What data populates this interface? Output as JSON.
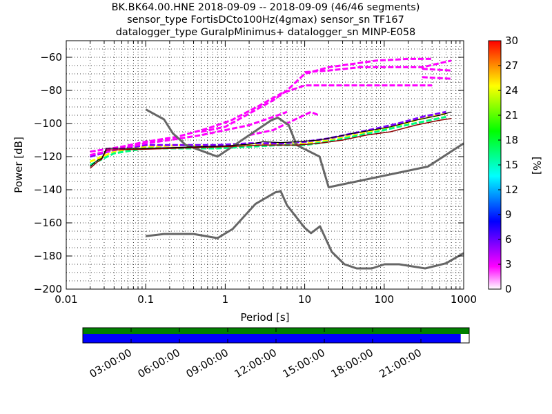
{
  "chart_data": {
    "type": "heatmap",
    "title_lines": [
      "BK.BK64.00.HNE   2018-09-09 -- 2018-09-09  (46/46 segments)",
      "sensor_type FortisDCto100Hz(4gmax) sensor_sn TF167",
      "datalogger_type GuralpMinimus+ datalogger_sn MINP-E058"
    ],
    "xlabel": "Period [s]",
    "ylabel": "Power [dB]",
    "xscale": "log",
    "xlim": [
      0.01,
      1000
    ],
    "ylim": [
      -200,
      -50
    ],
    "xticks": [
      {
        "value": 0.01,
        "label": "0.01"
      },
      {
        "value": 0.1,
        "label": "0.1"
      },
      {
        "value": 1,
        "label": "1"
      },
      {
        "value": 10,
        "label": "10"
      },
      {
        "value": 100,
        "label": "100"
      },
      {
        "value": 1000,
        "label": "1000"
      }
    ],
    "yticks": [
      {
        "value": -200,
        "label": "−200"
      },
      {
        "value": -180,
        "label": "−180"
      },
      {
        "value": -160,
        "label": "−160"
      },
      {
        "value": -140,
        "label": "−140"
      },
      {
        "value": -120,
        "label": "−120"
      },
      {
        "value": -100,
        "label": "−100"
      },
      {
        "value": -80,
        "label": "−80"
      },
      {
        "value": -60,
        "label": "−60"
      }
    ],
    "grid": true,
    "colorbar": {
      "label": "[%]",
      "min": 0,
      "max": 30,
      "ticks": [
        {
          "value": 0,
          "label": "0"
        },
        {
          "value": 3,
          "label": "3"
        },
        {
          "value": 6,
          "label": "6"
        },
        {
          "value": 9,
          "label": "9"
        },
        {
          "value": 12,
          "label": "12"
        },
        {
          "value": 15,
          "label": "15"
        },
        {
          "value": 18,
          "label": "18"
        },
        {
          "value": 21,
          "label": "21"
        },
        {
          "value": 24,
          "label": "24"
        },
        {
          "value": 27,
          "label": "27"
        },
        {
          "value": 30,
          "label": "30"
        }
      ],
      "colors": [
        "#ffffff",
        "#ff00ff",
        "#8000ff",
        "#0000ff",
        "#0080ff",
        "#00ffff",
        "#00ff80",
        "#00ff00",
        "#80ff00",
        "#ffff00",
        "#ff8000",
        "#ff0000"
      ]
    },
    "noise_models": [
      {
        "points": [
          [
            0.1,
            -91.5
          ],
          [
            0.17,
            -97.5
          ],
          [
            0.22,
            -106
          ],
          [
            0.32,
            -113
          ],
          [
            0.8,
            -120
          ],
          [
            3.8,
            -98
          ],
          [
            4.6,
            -96.5
          ],
          [
            6.3,
            -101
          ],
          [
            7.9,
            -113
          ],
          [
            15.4,
            -120
          ],
          [
            20,
            -138.5
          ],
          [
            354.8,
            -126
          ],
          [
            1000,
            -112
          ]
        ]
      },
      {
        "points": [
          [
            0.1,
            -168
          ],
          [
            0.17,
            -166.7
          ],
          [
            0.4,
            -166.7
          ],
          [
            0.8,
            -169.2
          ],
          [
            1.24,
            -163.7
          ],
          [
            2.4,
            -148.6
          ],
          [
            4.3,
            -141.5
          ],
          [
            5.0,
            -141
          ],
          [
            6.0,
            -149.4
          ],
          [
            10.0,
            -163
          ],
          [
            12.0,
            -166.2
          ],
          [
            15.6,
            -162.1
          ],
          [
            21.9,
            -177.5
          ],
          [
            31.6,
            -185
          ],
          [
            45.0,
            -187.5
          ],
          [
            70.0,
            -187.5
          ],
          [
            101.0,
            -185
          ],
          [
            154.0,
            -185
          ],
          [
            328.0,
            -187.5
          ],
          [
            600.0,
            -184.4
          ],
          [
            1000.0,
            -178.3
          ]
        ]
      }
    ],
    "mean_curve": {
      "points": [
        [
          0.02,
          -126
        ],
        [
          0.025,
          -122
        ],
        [
          0.028,
          -121
        ],
        [
          0.032,
          -115
        ],
        [
          0.05,
          -115
        ],
        [
          0.1,
          -115
        ],
        [
          0.2,
          -114.5
        ],
        [
          0.5,
          -114
        ],
        [
          1,
          -113.5
        ],
        [
          2,
          -112.5
        ],
        [
          3,
          -111
        ],
        [
          5,
          -111.5
        ],
        [
          8,
          -111
        ],
        [
          15,
          -110
        ],
        [
          25,
          -108
        ],
        [
          40,
          -106
        ],
        [
          70,
          -104
        ],
        [
          120,
          -102
        ],
        [
          250,
          -98
        ],
        [
          500,
          -95
        ],
        [
          700,
          -93
        ]
      ]
    },
    "mode_curve": {
      "points": [
        [
          0.02,
          -127
        ],
        [
          0.025,
          -123
        ],
        [
          0.028,
          -121.5
        ],
        [
          0.032,
          -116
        ],
        [
          0.1,
          -115.5
        ],
        [
          0.5,
          -114.5
        ],
        [
          1,
          -114
        ],
        [
          3,
          -113
        ],
        [
          8,
          -113
        ],
        [
          15,
          -112
        ],
        [
          30,
          -110
        ],
        [
          60,
          -107
        ],
        [
          120,
          -105
        ],
        [
          250,
          -101
        ],
        [
          500,
          -98
        ],
        [
          700,
          -97
        ]
      ]
    },
    "density_bands": [
      {
        "points": [
          [
            0.02,
            -123
          ],
          [
            0.04,
            -117
          ],
          [
            0.1,
            -114
          ],
          [
            0.3,
            -113
          ],
          [
            0.8,
            -114
          ],
          [
            2,
            -113
          ],
          [
            5,
            -112
          ],
          [
            10,
            -112
          ],
          [
            20,
            -110
          ],
          [
            40,
            -107
          ],
          [
            80,
            -104
          ],
          [
            150,
            -101
          ],
          [
            300,
            -97
          ],
          [
            600,
            -94
          ]
        ],
        "value": 24
      },
      {
        "points": [
          [
            0.02,
            -125
          ],
          [
            0.04,
            -118
          ],
          [
            0.1,
            -115
          ],
          [
            0.3,
            -115
          ],
          [
            0.8,
            -115
          ],
          [
            2,
            -114
          ],
          [
            5,
            -113
          ],
          [
            10,
            -113
          ],
          [
            20,
            -111
          ],
          [
            40,
            -108
          ],
          [
            80,
            -105
          ],
          [
            150,
            -102
          ],
          [
            300,
            -99
          ],
          [
            600,
            -96
          ]
        ],
        "value": 15
      },
      {
        "points": [
          [
            0.02,
            -120
          ],
          [
            0.04,
            -116
          ],
          [
            0.1,
            -113
          ],
          [
            0.3,
            -113
          ],
          [
            0.8,
            -113
          ],
          [
            2,
            -112
          ],
          [
            5,
            -112
          ],
          [
            10,
            -111
          ],
          [
            20,
            -109
          ],
          [
            40,
            -106
          ],
          [
            80,
            -103
          ],
          [
            150,
            -100
          ],
          [
            300,
            -96
          ],
          [
            600,
            -93
          ]
        ],
        "value": 6
      },
      {
        "points": [
          [
            0.02,
            -119
          ],
          [
            0.05,
            -115
          ],
          [
            0.1,
            -112
          ],
          [
            0.2,
            -110
          ],
          [
            0.5,
            -107
          ],
          [
            1,
            -104
          ],
          [
            2,
            -101
          ],
          [
            4,
            -96
          ],
          [
            6,
            -93
          ]
        ],
        "value": 2
      },
      {
        "points": [
          [
            0.02,
            -117
          ],
          [
            0.05,
            -114
          ],
          [
            0.1,
            -111
          ],
          [
            0.25,
            -108
          ],
          [
            0.6,
            -103
          ],
          [
            1.2,
            -98
          ],
          [
            2.5,
            -90
          ],
          [
            5,
            -82
          ],
          [
            10,
            -77
          ],
          [
            20,
            -77
          ],
          [
            100,
            -77
          ],
          [
            400,
            -77
          ]
        ],
        "value": 2
      },
      {
        "points": [
          [
            0.5,
            -105
          ],
          [
            1,
            -102
          ],
          [
            2,
            -94
          ],
          [
            4,
            -86
          ],
          [
            6,
            -80
          ],
          [
            10,
            -70
          ],
          [
            20,
            -66
          ],
          [
            40,
            -64
          ],
          [
            80,
            -62
          ],
          [
            200,
            -61
          ],
          [
            400,
            -61
          ]
        ],
        "value": 2
      },
      {
        "points": [
          [
            10,
            -69
          ],
          [
            20,
            -68
          ],
          [
            50,
            -66
          ],
          [
            100,
            -66
          ],
          [
            300,
            -66
          ],
          [
            700,
            -62
          ]
        ],
        "value": 2
      },
      {
        "points": [
          [
            300,
            -67
          ],
          [
            700,
            -68
          ]
        ],
        "value": 2
      },
      {
        "points": [
          [
            300,
            -72
          ],
          [
            700,
            -73
          ]
        ],
        "value": 2
      },
      {
        "points": [
          [
            2,
            -107
          ],
          [
            4,
            -104
          ],
          [
            8,
            -97
          ],
          [
            12,
            -93
          ],
          [
            15,
            -95
          ]
        ],
        "value": 2
      }
    ],
    "timeline": {
      "labels": [
        "03:00:00",
        "06:00:00",
        "09:00:00",
        "12:00:00",
        "15:00:00",
        "18:00:00",
        "21:00:00"
      ],
      "coverage_fraction": 0.978,
      "top_color": "#008000",
      "bottom_color": "#0000ff"
    }
  }
}
